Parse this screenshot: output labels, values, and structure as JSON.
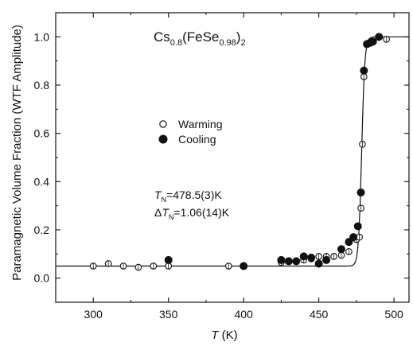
{
  "chart_data": {
    "type": "scatter",
    "ylabel": "Paramagnetic Volume Fraction (WTF Amplitude)",
    "xlabel_main": "T",
    "xlabel_unit": " (K)",
    "xlim": [
      275,
      510
    ],
    "ylim": [
      -0.1,
      1.1
    ],
    "xticks": [
      300,
      350,
      400,
      450,
      500
    ],
    "yticks": [
      0.0,
      0.2,
      0.4,
      0.6,
      0.8,
      1.0
    ],
    "yticklabels": [
      "0.0",
      "0.2",
      "0.4",
      "0.6",
      "0.8",
      "1.0"
    ],
    "title": {
      "parts": [
        "Cs",
        "0.8",
        "(FeSe",
        "0.98",
        ")",
        "2"
      ]
    },
    "legend": {
      "placement": "center-left",
      "entries": [
        {
          "label": "Warming",
          "marker": "open-circle"
        },
        {
          "label": "Cooling",
          "marker": "filled-circle"
        }
      ]
    },
    "annotation": {
      "tn_symbol": "T",
      "tn_sub": "N",
      "tn_value": "=478.5(3)K",
      "dtn_prefix": "Δ",
      "dtn_symbol": "T",
      "dtn_sub": "N",
      "dtn_value": "=1.06(14)K"
    },
    "series": [
      {
        "name": "Warming",
        "marker": "open",
        "points": [
          [
            300,
            0.05
          ],
          [
            310,
            0.06
          ],
          [
            320,
            0.05
          ],
          [
            330,
            0.045
          ],
          [
            340,
            0.05
          ],
          [
            350,
            0.05
          ],
          [
            390,
            0.05
          ],
          [
            425,
            0.065
          ],
          [
            430,
            0.07
          ],
          [
            440,
            0.075
          ],
          [
            445,
            0.08
          ],
          [
            450,
            0.09
          ],
          [
            455,
            0.09
          ],
          [
            460,
            0.09
          ],
          [
            465,
            0.095
          ],
          [
            470,
            0.11
          ],
          [
            475,
            0.16
          ],
          [
            477,
            0.17
          ],
          [
            478,
            0.29
          ],
          [
            479,
            0.555
          ],
          [
            480,
            0.835
          ],
          [
            482,
            0.97
          ],
          [
            485,
            0.98
          ],
          [
            490,
            1.0
          ],
          [
            495,
            0.99
          ]
        ]
      },
      {
        "name": "Cooling",
        "marker": "filled",
        "points": [
          [
            350,
            0.075
          ],
          [
            400,
            0.05
          ],
          [
            425,
            0.075
          ],
          [
            430,
            0.07
          ],
          [
            435,
            0.07
          ],
          [
            440,
            0.09
          ],
          [
            445,
            0.085
          ],
          [
            450,
            0.06
          ],
          [
            455,
            0.075
          ],
          [
            465,
            0.12
          ],
          [
            470,
            0.15
          ],
          [
            473,
            0.17
          ],
          [
            476,
            0.215
          ],
          [
            478,
            0.355
          ],
          [
            480,
            0.86
          ],
          [
            482,
            0.97
          ],
          [
            484,
            0.975
          ],
          [
            486,
            0.98
          ],
          [
            490,
            1.0
          ]
        ]
      }
    ],
    "fit_curve": {
      "baseline": 0.05,
      "top": 1.0,
      "tn": 478.5,
      "width": 1.06
    }
  }
}
